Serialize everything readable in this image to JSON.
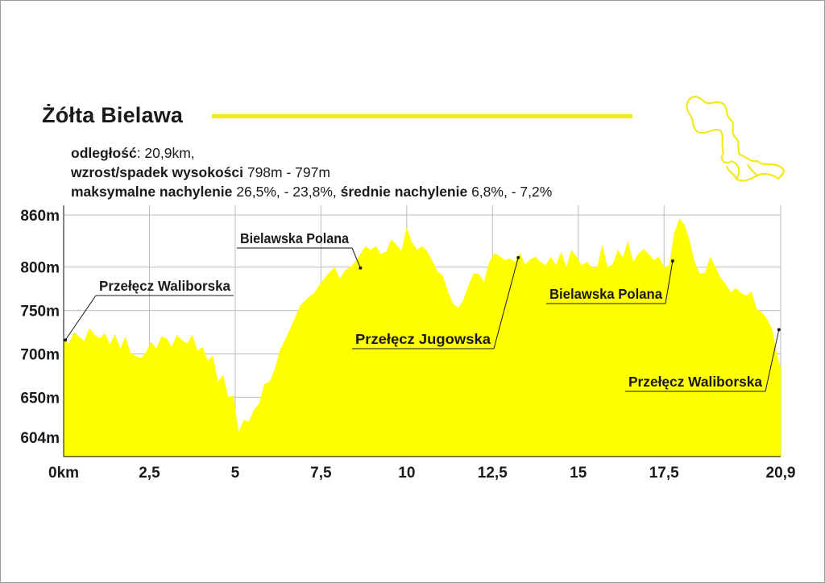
{
  "title": "Żółta Bielawa",
  "colors": {
    "accent": "#f2ea1c",
    "fill": "#ffff00",
    "grid": "#bdbdbd",
    "text": "#1a1a1a"
  },
  "stats": [
    {
      "label": "odległość",
      "value": ": 20,9km,"
    },
    {
      "label": "wzrost/spadek wysokości",
      "value": " 798m - 797m"
    },
    {
      "label": "maksymalne nachylenie",
      "value": " 26,5%, - 23,8%, ",
      "label2": "średnie nachylenie",
      "value2": " 6,8%, - 7,2%"
    }
  ],
  "inset_map_icon": "route-outline-map",
  "chart_data": {
    "type": "area",
    "title": "",
    "xlabel": "",
    "ylabel": "",
    "xlim": [
      0,
      20.9
    ],
    "ylim": [
      604,
      860
    ],
    "grid": true,
    "y_ticks": [
      {
        "value": 860,
        "label": "860m"
      },
      {
        "value": 800,
        "label": "800m"
      },
      {
        "value": 750,
        "label": "750m"
      },
      {
        "value": 700,
        "label": "700m"
      },
      {
        "value": 650,
        "label": "650m"
      },
      {
        "value": 604,
        "label": "604m"
      }
    ],
    "x_ticks": [
      {
        "value": 0,
        "label": "0km"
      },
      {
        "value": 2.5,
        "label": "2,5"
      },
      {
        "value": 5,
        "label": "5"
      },
      {
        "value": 7.5,
        "label": "7,5"
      },
      {
        "value": 10,
        "label": "10"
      },
      {
        "value": 12.5,
        "label": "12,5"
      },
      {
        "value": 15,
        "label": "15"
      },
      {
        "value": 17.5,
        "label": "17,5"
      },
      {
        "value": 20.9,
        "label": "20,9"
      }
    ],
    "series": [
      {
        "x": [
          0,
          0.15,
          0.3,
          0.45,
          0.6,
          0.75,
          0.9,
          1.05,
          1.2,
          1.35,
          1.5,
          1.65,
          1.8,
          1.95,
          2.1,
          2.25,
          2.4,
          2.55,
          2.7,
          2.85,
          3.0,
          3.15,
          3.3,
          3.45,
          3.6,
          3.75,
          3.9,
          4.05,
          4.2,
          4.35,
          4.5,
          4.65,
          4.8,
          4.95,
          5.1,
          5.25,
          5.4,
          5.55,
          5.7,
          5.85,
          6.0,
          6.15,
          6.3,
          6.5,
          6.7,
          6.9,
          7.1,
          7.3,
          7.5,
          7.7,
          7.9,
          8.05,
          8.2,
          8.35,
          8.5,
          8.65,
          8.8,
          8.95,
          9.1,
          9.25,
          9.4,
          9.55,
          9.7,
          9.85,
          10.0,
          10.15,
          10.3,
          10.45,
          10.6,
          10.75,
          10.9,
          11.05,
          11.2,
          11.35,
          11.5,
          11.65,
          11.8,
          11.95,
          12.1,
          12.25,
          12.4,
          12.55,
          12.7,
          12.85,
          13.0,
          13.15,
          13.3,
          13.45,
          13.6,
          13.75,
          13.9,
          14.05,
          14.2,
          14.35,
          14.5,
          14.65,
          14.8,
          14.95,
          15.1,
          15.25,
          15.4,
          15.55,
          15.7,
          15.85,
          16.0,
          16.15,
          16.3,
          16.45,
          16.6,
          16.75,
          16.9,
          17.05,
          17.2,
          17.35,
          17.5,
          17.65,
          17.8,
          17.95,
          18.1,
          18.25,
          18.4,
          18.55,
          18.7,
          18.85,
          19.0,
          19.15,
          19.3,
          19.45,
          19.6,
          19.75,
          19.9,
          20.05,
          20.2,
          20.35,
          20.5,
          20.65,
          20.8,
          20.9
        ],
        "y": [
          717,
          712,
          725,
          720,
          715,
          730,
          722,
          718,
          724,
          711,
          723,
          706,
          720,
          701,
          698,
          695,
          702,
          714,
          706,
          720,
          718,
          708,
          722,
          716,
          712,
          722,
          704,
          708,
          692,
          698,
          668,
          676,
          650,
          652,
          610,
          624,
          622,
          636,
          643,
          665,
          668,
          682,
          704,
          720,
          738,
          756,
          764,
          770,
          782,
          792,
          800,
          787,
          796,
          800,
          806,
          815,
          824,
          820,
          824,
          815,
          818,
          832,
          826,
          819,
          846,
          829,
          820,
          824,
          818,
          807,
          795,
          790,
          772,
          758,
          753,
          762,
          779,
          793,
          792,
          783,
          805,
          816,
          813,
          808,
          810,
          806,
          816,
          803,
          809,
          812,
          806,
          802,
          812,
          802,
          818,
          800,
          820,
          812,
          802,
          806,
          800,
          800,
          826,
          800,
          803,
          820,
          811,
          830,
          806,
          815,
          821,
          815,
          808,
          812,
          800,
          802,
          840,
          856,
          848,
          830,
          805,
          792,
          794,
          812,
          800,
          788,
          780,
          771,
          776,
          770,
          767,
          772,
          752,
          748,
          740,
          729,
          698,
          685
        ]
      }
    ],
    "annotations": [
      {
        "label": "Przełęcz Waliborska",
        "x": 0.05,
        "y": 716
      },
      {
        "label": "Bielawska Polana",
        "x": 8.65,
        "y": 799
      },
      {
        "label": "Przełęcz Jugowska",
        "x": 13.25,
        "y": 811
      },
      {
        "label": "Bielawska Polana",
        "x": 17.75,
        "y": 807
      },
      {
        "label": "Przełęcz Waliborska",
        "x": 20.85,
        "y": 728
      }
    ]
  }
}
